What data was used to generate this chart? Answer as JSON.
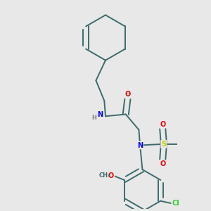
{
  "background_color": "#e8e8e8",
  "bond_color": "#3d6b6b",
  "atom_colors": {
    "N": "#0000ee",
    "O": "#ee0000",
    "S": "#cccc00",
    "Cl": "#33cc33",
    "H": "#808080",
    "C": "#3d6b6b"
  }
}
